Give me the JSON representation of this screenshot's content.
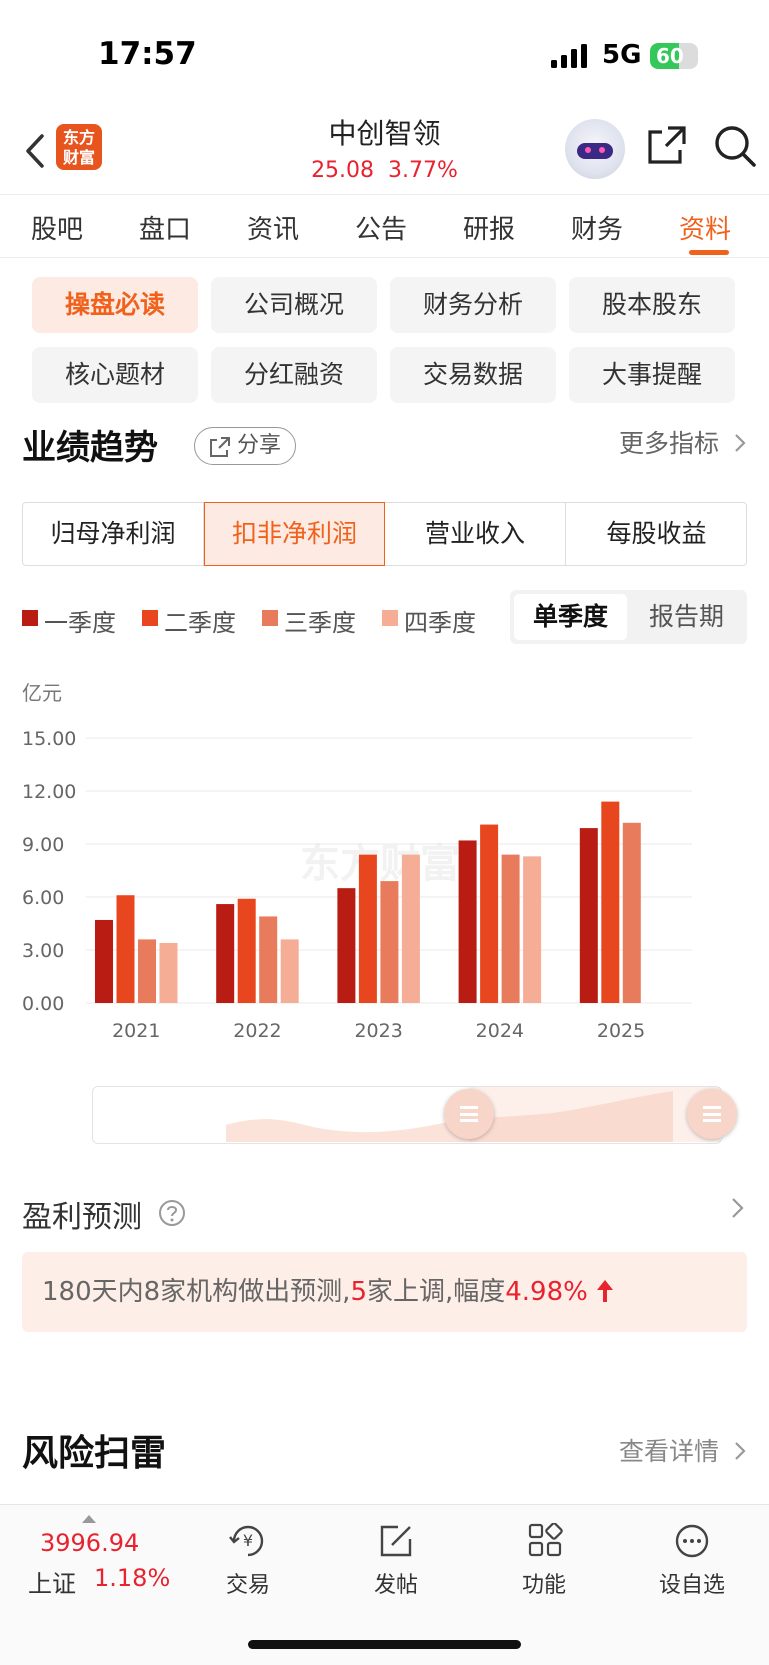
{
  "status_bar": {
    "time": "17:57",
    "network": "5G",
    "battery": "60",
    "battery_level": 0.6
  },
  "header": {
    "logo_line1": "东方",
    "logo_line2": "财富",
    "stock_name": "中创智领",
    "price": "25.08",
    "change_pct": "3.77%"
  },
  "tabs": [
    {
      "label": "股吧"
    },
    {
      "label": "盘口"
    },
    {
      "label": "资讯"
    },
    {
      "label": "公告"
    },
    {
      "label": "研报"
    },
    {
      "label": "财务"
    },
    {
      "label": "资料"
    }
  ],
  "chips": [
    {
      "label": "操盘必读"
    },
    {
      "label": "公司概况"
    },
    {
      "label": "财务分析"
    },
    {
      "label": "股本股东"
    },
    {
      "label": "核心题材"
    },
    {
      "label": "分红融资"
    },
    {
      "label": "交易数据"
    },
    {
      "label": "大事提醒"
    }
  ],
  "performance": {
    "title": "业绩趋势",
    "share_label": "分享",
    "more_label": "更多指标",
    "segments": [
      {
        "label": "归母净利润"
      },
      {
        "label": "扣非净利润"
      },
      {
        "label": "营业收入"
      },
      {
        "label": "每股收益"
      }
    ],
    "legend": [
      {
        "label": "一季度"
      },
      {
        "label": "二季度"
      },
      {
        "label": "三季度"
      },
      {
        "label": "四季度"
      }
    ],
    "toggle": {
      "single": "单季度",
      "report": "报告期"
    },
    "watermark": "东方财富"
  },
  "chart_data": {
    "type": "bar",
    "ylabel": "亿元",
    "categories": [
      "2021",
      "2022",
      "2023",
      "2024",
      "2025"
    ],
    "yticks": [
      "0.00",
      "3.00",
      "6.00",
      "9.00",
      "12.00",
      "15.00"
    ],
    "ylim": [
      0,
      15
    ],
    "series": [
      {
        "name": "一季度",
        "values": [
          4.7,
          5.6,
          6.5,
          9.2,
          9.9
        ]
      },
      {
        "name": "二季度",
        "values": [
          6.1,
          5.9,
          8.4,
          10.1,
          11.4
        ]
      },
      {
        "name": "三季度",
        "values": [
          3.6,
          4.9,
          6.9,
          8.4,
          10.2
        ]
      },
      {
        "name": "四季度",
        "values": [
          3.4,
          3.6,
          8.4,
          8.3,
          null
        ]
      }
    ],
    "colors": [
      "#b91c12",
      "#e8461f",
      "#e87b5c",
      "#f5ad96"
    ],
    "range_selector": {
      "start": 0.6,
      "end": 1.0
    }
  },
  "prediction": {
    "title": "盈利预测",
    "text_1": "180天内8家机构做出预测,",
    "count_up": "5",
    "text_2": "家上调,幅度",
    "pct": "4.98%"
  },
  "risk": {
    "title": "风险扫雷",
    "link": "查看详情"
  },
  "bottom_bar": {
    "index_value": "3996.94",
    "index_name": "上证",
    "index_change": "1.18%",
    "items": [
      {
        "label": "交易"
      },
      {
        "label": "发帖"
      },
      {
        "label": "功能"
      },
      {
        "label": "设自选"
      }
    ]
  }
}
